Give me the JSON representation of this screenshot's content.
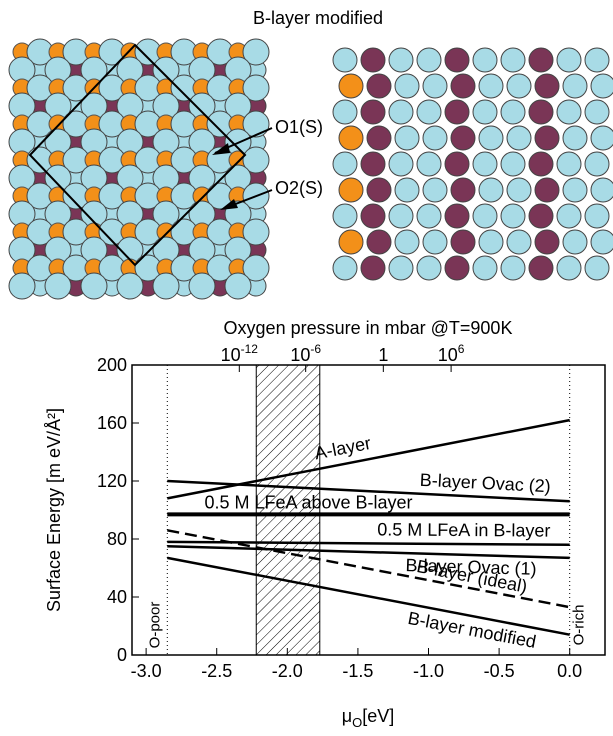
{
  "figure": {
    "title": "B-layer modified",
    "labels": [
      "O1(S)",
      "O2(S)"
    ]
  },
  "chart_data": {
    "type": "line",
    "top_axis_label": "Oxygen pressure in mbar @T=900K",
    "top_ticks": [
      {
        "value": -2.34,
        "label": "10",
        "exponent": "-12"
      },
      {
        "value": -1.87,
        "label": "10",
        "exponent": "-6"
      },
      {
        "value": -1.32,
        "label": "1"
      },
      {
        "value": -0.84,
        "label": "10",
        "exponent": "6"
      }
    ],
    "ylabel": "Surface Energy [m eV/Å²]",
    "xlabel": {
      "symbol": "μ",
      "sub": "O",
      "unit": "[eV]"
    },
    "x": [
      -2.85,
      0
    ],
    "xlim": [
      -3.1,
      0.25
    ],
    "ylim": [
      0,
      200
    ],
    "xticks": [
      {
        "value": -3,
        "label": "-3.0"
      },
      {
        "value": -2.5,
        "label": "-2.5"
      },
      {
        "value": -2,
        "label": "-2.0"
      },
      {
        "value": -1.5,
        "label": "-1.5"
      },
      {
        "value": -1,
        "label": "-1.0"
      },
      {
        "value": -0.5,
        "label": "-0.5"
      },
      {
        "value": 0,
        "label": "0.0"
      }
    ],
    "yticks": [
      0,
      40,
      80,
      120,
      160,
      200
    ],
    "shaded_region": [
      -2.22,
      -1.77
    ],
    "annotations": [
      {
        "text": "O-poor",
        "x": -2.85
      },
      {
        "text": "O-rich",
        "x": 0
      }
    ],
    "series": [
      {
        "name": "A-layer",
        "color": "#000000",
        "values": [
          108,
          162
        ]
      },
      {
        "name": "B-layer Ovac (2)",
        "color": "#000000",
        "values": [
          120,
          106
        ]
      },
      {
        "name": "0.5 M LFeA above B-layer",
        "color": "#000000",
        "values": [
          97,
          97
        ]
      },
      {
        "name": "0.5 M LFeA in B-layer",
        "color": "#000000",
        "values": [
          78,
          76
        ]
      },
      {
        "name": "B-layer Ovac (1)",
        "color": "#000000",
        "values": [
          75,
          67
        ]
      },
      {
        "name": "B-layer (ideal)",
        "color": "#000000",
        "dashed": true,
        "values": [
          86,
          33
        ]
      },
      {
        "name": "B-layer modified",
        "color": "#000000",
        "values": [
          67,
          14
        ]
      }
    ]
  }
}
